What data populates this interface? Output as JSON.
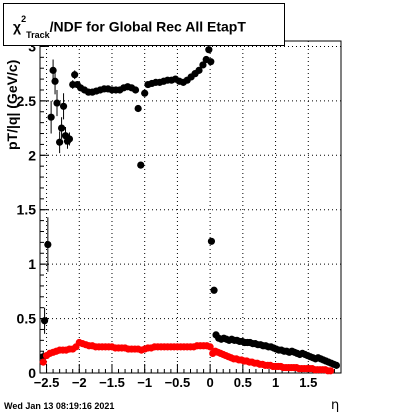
{
  "title": {
    "chi": "χ",
    "sup": "2",
    "sub": "Track",
    "rest": "/NDF for Global Rec All EtapT"
  },
  "footer": "Wed Jan 13 08:19:16 2021",
  "chart_data": {
    "type": "scatter",
    "xlabel": "η",
    "ylabel": "pT/|q| (GeV/c)",
    "xlim": [
      -2.6,
      2.0
    ],
    "ylim": [
      0,
      3.05
    ],
    "x_ticks": [
      -2.5,
      -2,
      -1.5,
      -1,
      -0.5,
      0,
      0.5,
      1,
      1.5
    ],
    "x_tick_labels": [
      "−2.5",
      "−2",
      "−1.5",
      "−1",
      "−0.5",
      "0",
      "0.5",
      "1",
      "1.5"
    ],
    "y_ticks": [
      0,
      0.5,
      1,
      1.5,
      2,
      2.5,
      3
    ],
    "y_tick_labels": [
      "0",
      "0.5",
      "1",
      "1.5",
      "2",
      "2.5",
      "3"
    ],
    "grid": true,
    "series": [
      {
        "color": "#000000",
        "points": [
          [
            -2.55,
            0.15,
            0.05
          ],
          [
            -2.53,
            0.48,
            0.12
          ],
          [
            -2.48,
            1.18,
            0.25
          ],
          [
            -2.43,
            2.35,
            0.15
          ],
          [
            -2.4,
            2.78,
            0.1
          ],
          [
            -2.37,
            2.68,
            0.12
          ],
          [
            -2.34,
            2.48,
            0.12
          ],
          [
            -2.3,
            2.12,
            0.1
          ],
          [
            -2.27,
            2.25,
            0.1
          ],
          [
            -2.24,
            2.45,
            0.12
          ],
          [
            -2.21,
            2.18,
            0.08
          ],
          [
            -2.18,
            2.13,
            0.07
          ],
          [
            -2.15,
            2.15,
            0.06
          ],
          [
            -2.1,
            2.65,
            0.04
          ],
          [
            -2.07,
            2.74,
            0.04
          ],
          [
            -2.03,
            2.65,
            0.03
          ],
          [
            -1.98,
            2.62,
            0.03
          ],
          [
            -1.92,
            2.6,
            0.03
          ],
          [
            -1.86,
            2.58,
            0.02
          ],
          [
            -1.8,
            2.58,
            0.02
          ],
          [
            -1.74,
            2.59,
            0.02
          ],
          [
            -1.68,
            2.6,
            0.02
          ],
          [
            -1.62,
            2.61,
            0.02
          ],
          [
            -1.56,
            2.61,
            0.02
          ],
          [
            -1.5,
            2.6,
            0.02
          ],
          [
            -1.44,
            2.6,
            0.02
          ],
          [
            -1.38,
            2.6,
            0.02
          ],
          [
            -1.32,
            2.62,
            0.02
          ],
          [
            -1.26,
            2.63,
            0.02
          ],
          [
            -1.2,
            2.62,
            0.02
          ],
          [
            -1.14,
            2.6,
            0.02
          ],
          [
            -1.1,
            2.43,
            0.02
          ],
          [
            -1.06,
            1.91,
            0.03
          ],
          [
            -1.0,
            2.57,
            0.02
          ],
          [
            -0.95,
            2.65,
            0.02
          ],
          [
            -0.89,
            2.66,
            0.02
          ],
          [
            -0.83,
            2.67,
            0.02
          ],
          [
            -0.77,
            2.67,
            0.02
          ],
          [
            -0.71,
            2.68,
            0.02
          ],
          [
            -0.65,
            2.69,
            0.02
          ],
          [
            -0.59,
            2.69,
            0.02
          ],
          [
            -0.53,
            2.7,
            0.02
          ],
          [
            -0.47,
            2.68,
            0.02
          ],
          [
            -0.41,
            2.67,
            0.02
          ],
          [
            -0.35,
            2.69,
            0.02
          ],
          [
            -0.29,
            2.72,
            0.02
          ],
          [
            -0.23,
            2.75,
            0.02
          ],
          [
            -0.17,
            2.78,
            0.02
          ],
          [
            -0.11,
            2.83,
            0.02
          ],
          [
            -0.06,
            2.88,
            0.02
          ],
          [
            -0.02,
            2.97,
            0.03
          ],
          [
            0.01,
            2.86,
            0.03
          ],
          [
            0.02,
            1.21,
            0.03
          ],
          [
            0.06,
            0.76,
            0.02
          ],
          [
            0.09,
            0.35,
            0.01
          ],
          [
            0.13,
            0.32,
            0.01
          ],
          [
            0.17,
            0.31,
            0.01
          ],
          [
            0.21,
            0.32,
            0.01
          ],
          [
            0.25,
            0.31,
            0.01
          ],
          [
            0.29,
            0.3,
            0.01
          ],
          [
            0.33,
            0.31,
            0.01
          ],
          [
            0.37,
            0.3,
            0.01
          ],
          [
            0.41,
            0.3,
            0.01
          ],
          [
            0.45,
            0.29,
            0.01
          ],
          [
            0.49,
            0.29,
            0.01
          ],
          [
            0.53,
            0.28,
            0.01
          ],
          [
            0.57,
            0.28,
            0.01
          ],
          [
            0.61,
            0.28,
            0.01
          ],
          [
            0.65,
            0.27,
            0.01
          ],
          [
            0.69,
            0.27,
            0.01
          ],
          [
            0.73,
            0.26,
            0.01
          ],
          [
            0.77,
            0.26,
            0.01
          ],
          [
            0.81,
            0.25,
            0.01
          ],
          [
            0.85,
            0.25,
            0.01
          ],
          [
            0.89,
            0.24,
            0.01
          ],
          [
            0.93,
            0.24,
            0.01
          ],
          [
            0.97,
            0.23,
            0.01
          ],
          [
            1.01,
            0.22,
            0.01
          ],
          [
            1.05,
            0.21,
            0.01
          ],
          [
            1.09,
            0.21,
            0.01
          ],
          [
            1.13,
            0.2,
            0.01
          ],
          [
            1.17,
            0.2,
            0.01
          ],
          [
            1.21,
            0.19,
            0.01
          ],
          [
            1.25,
            0.2,
            0.01
          ],
          [
            1.29,
            0.19,
            0.01
          ],
          [
            1.33,
            0.18,
            0.01
          ],
          [
            1.37,
            0.17,
            0.01
          ],
          [
            1.41,
            0.18,
            0.01
          ],
          [
            1.45,
            0.17,
            0.01
          ],
          [
            1.49,
            0.16,
            0.01
          ],
          [
            1.53,
            0.15,
            0.01
          ],
          [
            1.57,
            0.14,
            0.01
          ],
          [
            1.61,
            0.13,
            0.01
          ],
          [
            1.65,
            0.14,
            0.01
          ],
          [
            1.69,
            0.13,
            0.01
          ],
          [
            1.73,
            0.12,
            0.01
          ],
          [
            1.77,
            0.11,
            0.01
          ],
          [
            1.81,
            0.1,
            0.01
          ],
          [
            1.85,
            0.09,
            0.01
          ],
          [
            1.89,
            0.08,
            0.01
          ],
          [
            1.93,
            0.07,
            0.01
          ]
        ]
      },
      {
        "color": "#ff0000",
        "points": [
          [
            -2.55,
            0.1
          ],
          [
            -2.5,
            0.16
          ],
          [
            -2.45,
            0.18
          ],
          [
            -2.4,
            0.19
          ],
          [
            -2.35,
            0.2
          ],
          [
            -2.3,
            0.21
          ],
          [
            -2.25,
            0.21
          ],
          [
            -2.2,
            0.21
          ],
          [
            -2.15,
            0.22
          ],
          [
            -2.1,
            0.22
          ],
          [
            -2.05,
            0.24
          ],
          [
            -2.0,
            0.28
          ],
          [
            -1.95,
            0.27
          ],
          [
            -1.9,
            0.26
          ],
          [
            -1.85,
            0.25
          ],
          [
            -1.8,
            0.25
          ],
          [
            -1.75,
            0.24
          ],
          [
            -1.7,
            0.24
          ],
          [
            -1.65,
            0.24
          ],
          [
            -1.6,
            0.24
          ],
          [
            -1.55,
            0.24
          ],
          [
            -1.5,
            0.24
          ],
          [
            -1.45,
            0.23
          ],
          [
            -1.4,
            0.23
          ],
          [
            -1.35,
            0.23
          ],
          [
            -1.3,
            0.23
          ],
          [
            -1.25,
            0.22
          ],
          [
            -1.2,
            0.22
          ],
          [
            -1.15,
            0.22
          ],
          [
            -1.1,
            0.22
          ],
          [
            -1.05,
            0.21
          ],
          [
            -1.0,
            0.22
          ],
          [
            -0.95,
            0.23
          ],
          [
            -0.9,
            0.23
          ],
          [
            -0.85,
            0.24
          ],
          [
            -0.8,
            0.24
          ],
          [
            -0.75,
            0.24
          ],
          [
            -0.7,
            0.24
          ],
          [
            -0.65,
            0.24
          ],
          [
            -0.6,
            0.24
          ],
          [
            -0.55,
            0.24
          ],
          [
            -0.5,
            0.24
          ],
          [
            -0.45,
            0.24
          ],
          [
            -0.4,
            0.24
          ],
          [
            -0.35,
            0.24
          ],
          [
            -0.3,
            0.24
          ],
          [
            -0.25,
            0.24
          ],
          [
            -0.2,
            0.25
          ],
          [
            -0.15,
            0.25
          ],
          [
            -0.1,
            0.25
          ],
          [
            -0.05,
            0.25
          ],
          [
            0.0,
            0.24
          ],
          [
            0.04,
            0.18
          ],
          [
            0.08,
            0.2
          ],
          [
            0.12,
            0.19
          ],
          [
            0.16,
            0.18
          ],
          [
            0.2,
            0.17
          ],
          [
            0.24,
            0.16
          ],
          [
            0.28,
            0.15
          ],
          [
            0.32,
            0.14
          ],
          [
            0.36,
            0.13
          ],
          [
            0.4,
            0.13
          ],
          [
            0.44,
            0.12
          ],
          [
            0.48,
            0.12
          ],
          [
            0.52,
            0.11
          ],
          [
            0.56,
            0.11
          ],
          [
            0.6,
            0.1
          ],
          [
            0.64,
            0.1
          ],
          [
            0.68,
            0.09
          ],
          [
            0.72,
            0.09
          ],
          [
            0.76,
            0.08
          ],
          [
            0.8,
            0.08
          ],
          [
            0.84,
            0.07
          ],
          [
            0.88,
            0.07
          ],
          [
            0.92,
            0.07
          ],
          [
            0.96,
            0.06
          ],
          [
            1.0,
            0.06
          ],
          [
            1.04,
            0.06
          ],
          [
            1.08,
            0.06
          ],
          [
            1.12,
            0.05
          ],
          [
            1.16,
            0.05
          ],
          [
            1.2,
            0.05
          ],
          [
            1.24,
            0.05
          ],
          [
            1.28,
            0.05
          ],
          [
            1.32,
            0.05
          ],
          [
            1.36,
            0.04
          ],
          [
            1.4,
            0.04
          ],
          [
            1.44,
            0.04
          ],
          [
            1.48,
            0.04
          ],
          [
            1.52,
            0.04
          ],
          [
            1.56,
            0.04
          ],
          [
            1.6,
            0.03
          ],
          [
            1.64,
            0.03
          ],
          [
            1.68,
            0.03
          ],
          [
            1.72,
            0.03
          ],
          [
            1.76,
            0.03
          ],
          [
            1.8,
            0.02
          ],
          [
            1.84,
            0.02
          ]
        ]
      }
    ]
  }
}
